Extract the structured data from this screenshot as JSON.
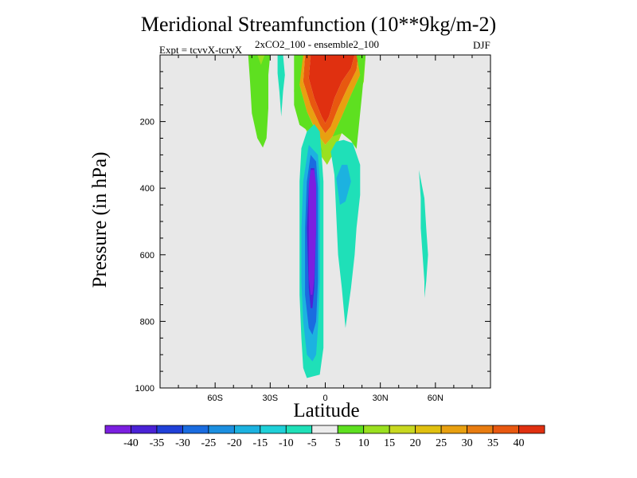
{
  "chart_data": {
    "type": "contour",
    "title": "Meridional Streamfunction (10**9kg/m-2)",
    "subtitle": "2xCO2_100 - ensemble2_100",
    "experiment": "Expt = tcvvX-tcrvX",
    "season": "DJF",
    "xlabel": "Latitude",
    "ylabel": "Pressure (in hPa)",
    "xlim": [
      -90,
      90
    ],
    "ylim": [
      1000,
      0
    ],
    "y_reversed": true,
    "plot_background": "#e8e8e8",
    "xticks": [
      {
        "value": -60,
        "label": "60S"
      },
      {
        "value": -30,
        "label": "30S"
      },
      {
        "value": 0,
        "label": "0"
      },
      {
        "value": 30,
        "label": "30N"
      },
      {
        "value": 60,
        "label": "60N"
      }
    ],
    "yticks": [
      {
        "value": 200,
        "label": "200"
      },
      {
        "value": 400,
        "label": "400"
      },
      {
        "value": 600,
        "label": "600"
      },
      {
        "value": 800,
        "label": "800"
      },
      {
        "value": 1000,
        "label": "1000"
      }
    ],
    "colorbar": {
      "labels": [
        "-40",
        "-35",
        "-30",
        "-25",
        "-20",
        "-15",
        "-10",
        "-5",
        "5",
        "10",
        "15",
        "20",
        "25",
        "30",
        "35",
        "40"
      ],
      "colors": [
        "#7b1fe0",
        "#4a22d6",
        "#2040d8",
        "#1a6ce0",
        "#1c8fe0",
        "#1cb2e0",
        "#1fd0d8",
        "#1fe0b8",
        "#ececec",
        "#5ee020",
        "#9ae020",
        "#c8d820",
        "#e0c010",
        "#e8a010",
        "#e87c10",
        "#e85810",
        "#e03010"
      ]
    },
    "regions": [
      {
        "name": "positive-center-35",
        "color": "#e03010",
        "points": [
          [
            -8,
            0
          ],
          [
            16,
            0
          ],
          [
            14,
            40
          ],
          [
            9,
            80
          ],
          [
            5,
            130
          ],
          [
            2,
            185
          ],
          [
            0,
            205
          ],
          [
            -2,
            185
          ],
          [
            -6,
            130
          ],
          [
            -9,
            70
          ]
        ]
      },
      {
        "name": "positive-ring-30",
        "color": "#e85810",
        "points": [
          [
            -11,
            0
          ],
          [
            -8,
            0
          ],
          [
            -9,
            70
          ],
          [
            -6,
            130
          ],
          [
            -2,
            185
          ],
          [
            0,
            205
          ],
          [
            2,
            185
          ],
          [
            5,
            130
          ],
          [
            9,
            80
          ],
          [
            14,
            40
          ],
          [
            16,
            0
          ],
          [
            18,
            0
          ],
          [
            17,
            45
          ],
          [
            12,
            100
          ],
          [
            7,
            160
          ],
          [
            3,
            215
          ],
          [
            0,
            235
          ],
          [
            -3,
            210
          ],
          [
            -8,
            150
          ],
          [
            -12,
            80
          ]
        ]
      },
      {
        "name": "positive-ring-20",
        "color": "#e8a010",
        "points": [
          [
            -13,
            0
          ],
          [
            -11,
            0
          ],
          [
            -12,
            80
          ],
          [
            -8,
            150
          ],
          [
            -3,
            210
          ],
          [
            0,
            235
          ],
          [
            3,
            215
          ],
          [
            7,
            160
          ],
          [
            12,
            100
          ],
          [
            17,
            45
          ],
          [
            18,
            0
          ],
          [
            20,
            0
          ],
          [
            19,
            60
          ],
          [
            14,
            120
          ],
          [
            9,
            185
          ],
          [
            4,
            245
          ],
          [
            0,
            270
          ],
          [
            -4,
            240
          ],
          [
            -10,
            170
          ],
          [
            -14,
            90
          ]
        ]
      },
      {
        "name": "positive-ring-10",
        "color": "#9ae020",
        "points": [
          [
            -16,
            0
          ],
          [
            -13,
            0
          ],
          [
            -14,
            90
          ],
          [
            -10,
            170
          ],
          [
            -4,
            240
          ],
          [
            0,
            270
          ],
          [
            4,
            245
          ],
          [
            9,
            185
          ],
          [
            14,
            120
          ],
          [
            19,
            60
          ],
          [
            20,
            0
          ],
          [
            22,
            0
          ],
          [
            21,
            80
          ],
          [
            16,
            160
          ],
          [
            10,
            220
          ],
          [
            5,
            290
          ],
          [
            1,
            330
          ],
          [
            -4,
            290
          ],
          [
            -11,
            220
          ],
          [
            -17,
            110
          ]
        ]
      },
      {
        "name": "positive-outer-5-right",
        "color": "#5ee020",
        "points": [
          [
            17,
            0
          ],
          [
            22,
            0
          ],
          [
            20,
            120
          ],
          [
            18,
            230
          ],
          [
            17,
            282
          ],
          [
            14,
            258
          ],
          [
            9,
            235
          ],
          [
            4,
            245
          ],
          [
            9,
            185
          ],
          [
            14,
            120
          ],
          [
            19,
            60
          ]
        ]
      },
      {
        "name": "positive-outer-5-left",
        "color": "#5ee020",
        "points": [
          [
            -17,
            0
          ],
          [
            -12,
            0
          ],
          [
            -14,
            90
          ],
          [
            -10,
            170
          ],
          [
            -5,
            232
          ],
          [
            -1,
            300
          ],
          [
            -4,
            260
          ],
          [
            -10,
            225
          ],
          [
            -14,
            210
          ],
          [
            -17,
            150
          ]
        ]
      },
      {
        "name": "positive-left-lobe",
        "color": "#5ee020",
        "points": [
          [
            -42,
            0
          ],
          [
            -30,
            0
          ],
          [
            -31,
            60
          ],
          [
            -31,
            160
          ],
          [
            -32,
            250
          ],
          [
            -34,
            278
          ],
          [
            -37,
            250
          ],
          [
            -40,
            175
          ],
          [
            -41,
            80
          ]
        ]
      },
      {
        "name": "positive-left-lobe-inner",
        "color": "#9ae020",
        "points": [
          [
            -38,
            0
          ],
          [
            -33,
            0
          ],
          [
            -35,
            30
          ],
          [
            -37,
            0
          ]
        ]
      },
      {
        "name": "negative-small-left",
        "color": "#1fe0b8",
        "points": [
          [
            -26,
            0
          ],
          [
            -23,
            0
          ],
          [
            -22,
            60
          ],
          [
            -23,
            110
          ],
          [
            -24,
            185
          ],
          [
            -25,
            110
          ],
          [
            -26,
            55
          ]
        ]
      },
      {
        "name": "negative-main-outer",
        "color": "#1fe0b8",
        "points": [
          [
            -6,
            208
          ],
          [
            -3,
            230
          ],
          [
            -2,
            300
          ],
          [
            -1,
            380
          ],
          [
            -1,
            520
          ],
          [
            -1,
            660
          ],
          [
            -1,
            790
          ],
          [
            -1,
            880
          ],
          [
            -3,
            960
          ],
          [
            -10,
            970
          ],
          [
            -12,
            940
          ],
          [
            -13,
            850
          ],
          [
            -14,
            720
          ],
          [
            -14,
            540
          ],
          [
            -14,
            380
          ],
          [
            -13,
            280
          ],
          [
            -10,
            230
          ]
        ]
      },
      {
        "name": "negative-main-15",
        "color": "#1cb2e0",
        "points": [
          [
            -4,
            300
          ],
          [
            -3,
            380
          ],
          [
            -3,
            520
          ],
          [
            -3,
            680
          ],
          [
            -4,
            820
          ],
          [
            -5,
            900
          ],
          [
            -7,
            920
          ],
          [
            -10,
            900
          ],
          [
            -12,
            800
          ],
          [
            -13,
            680
          ],
          [
            -13,
            520
          ],
          [
            -12,
            380
          ],
          [
            -9,
            270
          ]
        ]
      },
      {
        "name": "negative-main-20",
        "color": "#1a6ce0",
        "points": [
          [
            -5,
            320
          ],
          [
            -4,
            400
          ],
          [
            -4,
            520
          ],
          [
            -4,
            680
          ],
          [
            -5,
            800
          ],
          [
            -7,
            840
          ],
          [
            -9,
            820
          ],
          [
            -11,
            720
          ],
          [
            -11,
            520
          ],
          [
            -10,
            380
          ],
          [
            -8,
            300
          ]
        ]
      },
      {
        "name": "negative-main-30",
        "color": "#4a22d6",
        "points": [
          [
            -6,
            340
          ],
          [
            -5,
            400
          ],
          [
            -5,
            520
          ],
          [
            -6,
            700
          ],
          [
            -7,
            760
          ],
          [
            -8,
            760
          ],
          [
            -9,
            700
          ],
          [
            -10,
            520
          ],
          [
            -9,
            400
          ],
          [
            -8,
            340
          ]
        ]
      },
      {
        "name": "negative-main-core",
        "color": "#7b1fe0",
        "points": [
          [
            -6,
            345
          ],
          [
            -5,
            390
          ],
          [
            -5,
            520
          ],
          [
            -6,
            670
          ],
          [
            -7,
            720
          ],
          [
            -8,
            720
          ],
          [
            -9,
            670
          ],
          [
            -9,
            520
          ],
          [
            -9,
            390
          ],
          [
            -8,
            345
          ]
        ]
      },
      {
        "name": "negative-right-lobe",
        "color": "#1fe0b8",
        "points": [
          [
            3,
            290
          ],
          [
            6,
            260
          ],
          [
            10,
            255
          ],
          [
            15,
            265
          ],
          [
            19,
            330
          ],
          [
            19,
            420
          ],
          [
            17,
            520
          ],
          [
            16,
            600
          ],
          [
            14,
            700
          ],
          [
            11,
            820
          ],
          [
            9,
            700
          ],
          [
            7,
            600
          ],
          [
            6,
            480
          ],
          [
            5,
            360
          ]
        ]
      },
      {
        "name": "negative-right-lobe-inner",
        "color": "#1cb2e0",
        "points": [
          [
            6,
            370
          ],
          [
            9,
            330
          ],
          [
            12,
            330
          ],
          [
            14,
            380
          ],
          [
            11,
            440
          ],
          [
            8,
            450
          ]
        ]
      },
      {
        "name": "negative-far-right",
        "color": "#1fe0b8",
        "points": [
          [
            51,
            345
          ],
          [
            52,
            430
          ],
          [
            52,
            520
          ],
          [
            53,
            600
          ],
          [
            54,
            680
          ],
          [
            54,
            730
          ],
          [
            55,
            680
          ],
          [
            56,
            600
          ],
          [
            55,
            520
          ],
          [
            54,
            430
          ]
        ]
      }
    ]
  }
}
